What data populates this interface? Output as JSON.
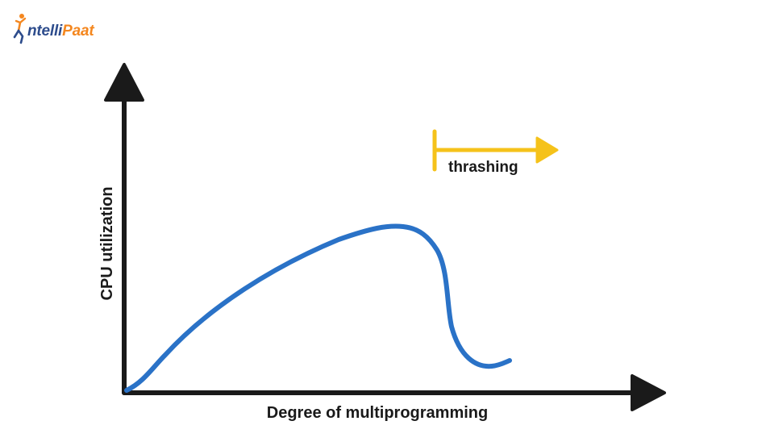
{
  "logo": {
    "brand_part1": "ntelli",
    "brand_part2": "Paat",
    "icon": "person-jumping-logo-icon",
    "colors": {
      "primary": "#2d4c8c",
      "accent": "#f4871f"
    }
  },
  "diagram": {
    "y_axis_label": "CPU utilization",
    "x_axis_label": "Degree of multiprogramming",
    "thrashing_label": "thrashing",
    "colors": {
      "axes": "#1a1a1a",
      "curve": "#2a72c7",
      "thrashing_marker": "#f5c21a"
    }
  }
}
